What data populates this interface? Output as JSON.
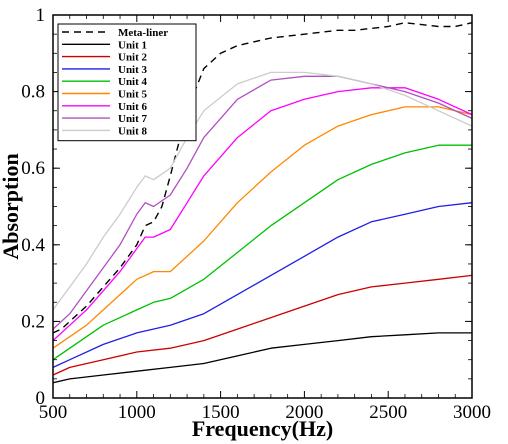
{
  "chart_data": {
    "type": "line",
    "title": "",
    "xlabel": "Frequency(Hz)",
    "ylabel": "Absorption",
    "xlim": [
      500,
      3000
    ],
    "ylim": [
      0,
      1
    ],
    "x_ticks": [
      500,
      1000,
      1500,
      2000,
      2500,
      3000
    ],
    "y_ticks": [
      0,
      0.2,
      0.4,
      0.6,
      0.8,
      1
    ],
    "y_tick_labels": [
      "0",
      "0.2",
      "0.4",
      "0.6",
      "0.8",
      "1"
    ],
    "grid": false,
    "legend_position": "top-left",
    "series": [
      {
        "name": "Meta-liner",
        "color": "#000000",
        "dash": "dashed",
        "x": [
          500,
          550,
          600,
          700,
          800,
          900,
          1000,
          1050,
          1100,
          1150,
          1200,
          1300,
          1400,
          1500,
          1600,
          1700,
          1800,
          1900,
          2000,
          2100,
          2200,
          2300,
          2400,
          2500,
          2600,
          2700,
          2800,
          2900,
          3000
        ],
        "y": [
          0.17,
          0.18,
          0.2,
          0.24,
          0.29,
          0.34,
          0.4,
          0.45,
          0.46,
          0.5,
          0.58,
          0.75,
          0.86,
          0.9,
          0.92,
          0.93,
          0.94,
          0.945,
          0.95,
          0.955,
          0.96,
          0.96,
          0.965,
          0.97,
          0.98,
          0.975,
          0.97,
          0.97,
          0.98
        ]
      },
      {
        "name": "Unit 1",
        "color": "#000000",
        "dash": "solid",
        "x": [
          500,
          600,
          800,
          1000,
          1200,
          1400,
          1600,
          1800,
          2000,
          2200,
          2400,
          2600,
          2800,
          3000
        ],
        "y": [
          0.04,
          0.05,
          0.06,
          0.07,
          0.08,
          0.09,
          0.11,
          0.13,
          0.14,
          0.15,
          0.16,
          0.165,
          0.17,
          0.17
        ]
      },
      {
        "name": "Unit 2",
        "color": "#cc0000",
        "dash": "solid",
        "x": [
          500,
          600,
          800,
          1000,
          1200,
          1400,
          1600,
          1800,
          2000,
          2200,
          2400,
          2600,
          2800,
          3000
        ],
        "y": [
          0.06,
          0.08,
          0.1,
          0.12,
          0.13,
          0.15,
          0.18,
          0.21,
          0.24,
          0.27,
          0.29,
          0.3,
          0.31,
          0.32
        ]
      },
      {
        "name": "Unit 3",
        "color": "#1f1fe6",
        "dash": "solid",
        "x": [
          500,
          600,
          800,
          1000,
          1200,
          1400,
          1600,
          1800,
          2000,
          2200,
          2400,
          2600,
          2800,
          3000
        ],
        "y": [
          0.08,
          0.1,
          0.14,
          0.17,
          0.19,
          0.22,
          0.27,
          0.32,
          0.37,
          0.42,
          0.46,
          0.48,
          0.5,
          0.51
        ]
      },
      {
        "name": "Unit 4",
        "color": "#00c000",
        "dash": "solid",
        "x": [
          500,
          600,
          700,
          800,
          1000,
          1100,
          1200,
          1400,
          1600,
          1800,
          2000,
          2200,
          2400,
          2600,
          2800,
          3000
        ],
        "y": [
          0.1,
          0.13,
          0.16,
          0.19,
          0.23,
          0.25,
          0.26,
          0.31,
          0.38,
          0.45,
          0.51,
          0.57,
          0.61,
          0.64,
          0.66,
          0.66
        ]
      },
      {
        "name": "Unit 5",
        "color": "#ff8800",
        "dash": "solid",
        "x": [
          500,
          600,
          700,
          800,
          900,
          1000,
          1100,
          1200,
          1400,
          1600,
          1800,
          2000,
          2200,
          2400,
          2600,
          2800,
          3000
        ],
        "y": [
          0.13,
          0.16,
          0.19,
          0.23,
          0.27,
          0.31,
          0.33,
          0.33,
          0.41,
          0.51,
          0.59,
          0.66,
          0.71,
          0.74,
          0.76,
          0.76,
          0.74
        ]
      },
      {
        "name": "Unit 6",
        "color": "#ff00ff",
        "dash": "solid",
        "x": [
          500,
          600,
          700,
          800,
          900,
          1000,
          1050,
          1100,
          1200,
          1300,
          1400,
          1600,
          1800,
          2000,
          2200,
          2400,
          2600,
          2800,
          3000
        ],
        "y": [
          0.15,
          0.19,
          0.23,
          0.28,
          0.33,
          0.39,
          0.42,
          0.42,
          0.44,
          0.51,
          0.58,
          0.68,
          0.75,
          0.78,
          0.8,
          0.81,
          0.81,
          0.78,
          0.74
        ]
      },
      {
        "name": "Unit 7",
        "color": "#b050c0",
        "dash": "solid",
        "x": [
          500,
          600,
          700,
          800,
          900,
          1000,
          1050,
          1100,
          1200,
          1300,
          1400,
          1600,
          1800,
          2000,
          2200,
          2400,
          2600,
          2800,
          3000
        ],
        "y": [
          0.18,
          0.22,
          0.28,
          0.34,
          0.4,
          0.48,
          0.51,
          0.5,
          0.53,
          0.6,
          0.68,
          0.78,
          0.83,
          0.84,
          0.84,
          0.82,
          0.8,
          0.77,
          0.73
        ]
      },
      {
        "name": "Unit 8",
        "color": "#cccccc",
        "dash": "solid",
        "x": [
          500,
          600,
          700,
          800,
          900,
          1000,
          1050,
          1100,
          1200,
          1300,
          1400,
          1600,
          1800,
          2000,
          2200,
          2400,
          2600,
          2800,
          3000
        ],
        "y": [
          0.23,
          0.29,
          0.35,
          0.42,
          0.48,
          0.55,
          0.58,
          0.57,
          0.6,
          0.68,
          0.75,
          0.82,
          0.85,
          0.85,
          0.84,
          0.82,
          0.79,
          0.75,
          0.71
        ]
      }
    ]
  }
}
